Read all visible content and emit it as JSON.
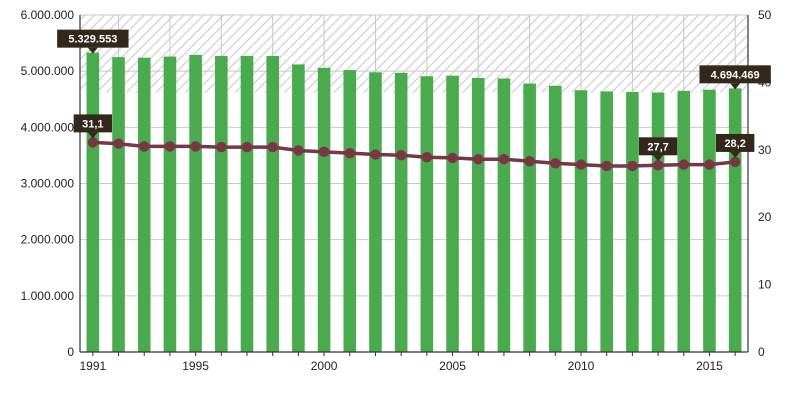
{
  "chart_data": {
    "type": "bar",
    "x": [
      1991,
      1992,
      1993,
      1994,
      1995,
      1996,
      1997,
      1998,
      1999,
      2000,
      2001,
      2002,
      2003,
      2004,
      2005,
      2006,
      2007,
      2008,
      2009,
      2010,
      2011,
      2012,
      2013,
      2014,
      2015,
      2016
    ],
    "x_tick_labels": [
      "1991",
      "1995",
      "2000",
      "2005",
      "2010",
      "2015"
    ],
    "series": [
      {
        "axis": "left",
        "type": "bar",
        "color": "#4aab4e",
        "values": [
          5329553,
          5250000,
          5240000,
          5260000,
          5290000,
          5270000,
          5270000,
          5270000,
          5120000,
          5060000,
          5020000,
          4980000,
          4970000,
          4910000,
          4920000,
          4880000,
          4870000,
          4780000,
          4740000,
          4660000,
          4640000,
          4630000,
          4620000,
          4650000,
          4670000,
          4694469
        ]
      },
      {
        "axis": "right",
        "type": "line",
        "color": "#7a3547",
        "values": [
          31.1,
          30.9,
          30.5,
          30.5,
          30.5,
          30.4,
          30.4,
          30.4,
          29.9,
          29.7,
          29.5,
          29.3,
          29.2,
          28.9,
          28.8,
          28.6,
          28.6,
          28.3,
          28.0,
          27.8,
          27.6,
          27.6,
          27.7,
          27.8,
          27.8,
          28.2
        ]
      }
    ],
    "y_left": {
      "range": [
        0,
        6000000
      ],
      "tick_labels": [
        "0",
        "1.000.000",
        "2.000.000",
        "3.000.000",
        "4.000.000",
        "5.000.000",
        "6.000.000"
      ]
    },
    "y_right": {
      "range": [
        0,
        50
      ],
      "tick_labels": [
        "0",
        "10",
        "20",
        "30",
        "40",
        "50"
      ]
    },
    "callouts": [
      {
        "label": "5.329.553",
        "series": 0,
        "index": 0
      },
      {
        "label": "4.694.469",
        "series": 0,
        "index": 25
      },
      {
        "label": "31,1",
        "series": 1,
        "index": 0
      },
      {
        "label": "27,7",
        "series": 1,
        "index": 22
      },
      {
        "label": "28,2",
        "series": 1,
        "index": 25
      }
    ],
    "grid": true,
    "hatched_background": true,
    "colors": {
      "callout_bg": "#33291b",
      "grid": "#c8c8c8",
      "hatch": "#cfcfcf"
    }
  }
}
